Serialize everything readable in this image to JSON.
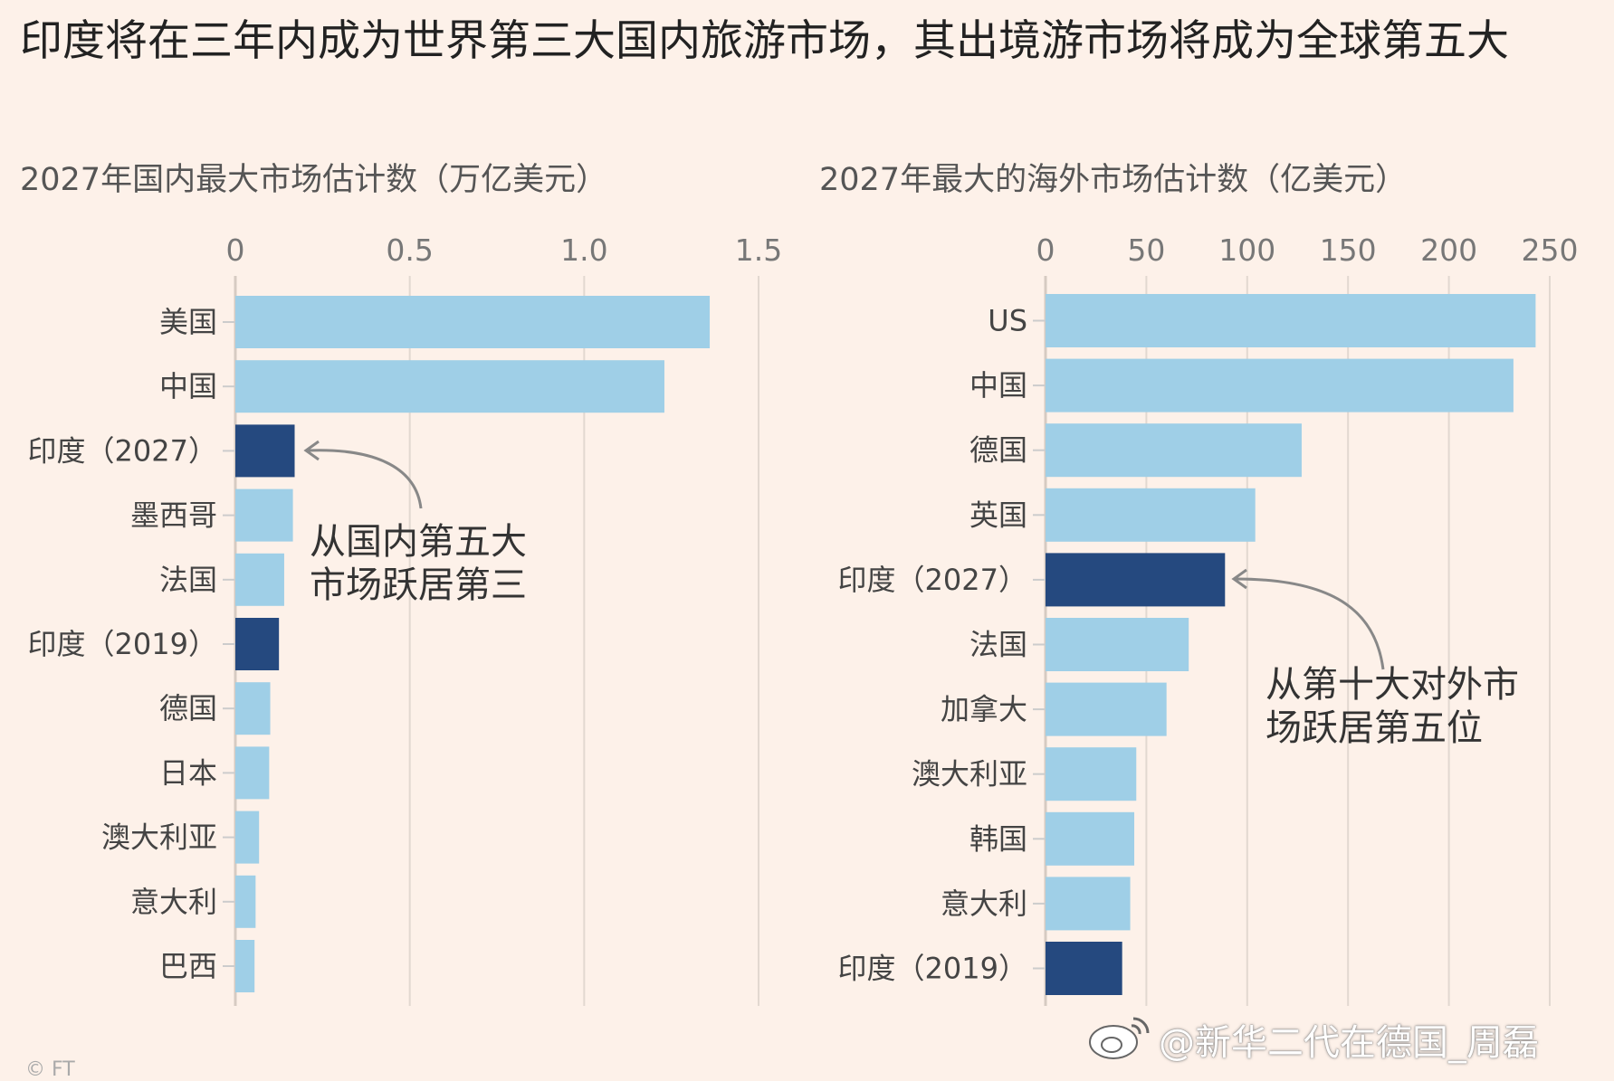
{
  "title": "印度将在三年内成为世界第三大国内旅游市场，其出境游市场将成为全球第五大",
  "colors": {
    "bar_light": "#9fcfe7",
    "bar_dark": "#25497f",
    "grid": "#e2d8d0",
    "background": "#fdf1e9"
  },
  "chart_data": [
    {
      "type": "bar",
      "orientation": "horizontal",
      "title": "2027年国内最大市场估计数（万亿美元）",
      "categories": [
        "美国",
        "中国",
        "印度（2027）",
        "墨西哥",
        "法国",
        "印度（2019）",
        "德国",
        "日本",
        "澳大利亚",
        "意大利",
        "巴西"
      ],
      "values": [
        1.36,
        1.23,
        0.17,
        0.165,
        0.14,
        0.125,
        0.1,
        0.097,
        0.068,
        0.058,
        0.055
      ],
      "highlight": [
        false,
        false,
        true,
        false,
        false,
        true,
        false,
        false,
        false,
        false,
        false
      ],
      "xticks": [
        0,
        0.5,
        1.0,
        1.5
      ],
      "xtick_labels": [
        "0",
        "0.5",
        "1.0",
        "1.5"
      ],
      "xlim": [
        0,
        1.5
      ],
      "annotation": [
        "从国内第五大",
        "市场跃居第三"
      ]
    },
    {
      "type": "bar",
      "orientation": "horizontal",
      "title": "2027年最大的海外市场估计数（亿美元）",
      "categories": [
        "US",
        "中国",
        "德国",
        "英国",
        "印度（2027）",
        "法国",
        "加拿大",
        "澳大利亚",
        "韩国",
        "意大利",
        "印度（2019）"
      ],
      "values": [
        243,
        232,
        127,
        104,
        89,
        71,
        60,
        45,
        44,
        42,
        38
      ],
      "highlight": [
        false,
        false,
        false,
        false,
        true,
        false,
        false,
        false,
        false,
        false,
        true
      ],
      "xticks": [
        0,
        50,
        100,
        150,
        200,
        250
      ],
      "xtick_labels": [
        "0",
        "50",
        "100",
        "150",
        "200",
        "250"
      ],
      "xlim": [
        0,
        250
      ],
      "annotation": [
        "从第十大对外市",
        "场跃居第五位"
      ]
    }
  ],
  "watermark": "@新华二代在德国_周磊",
  "source": "© FT"
}
